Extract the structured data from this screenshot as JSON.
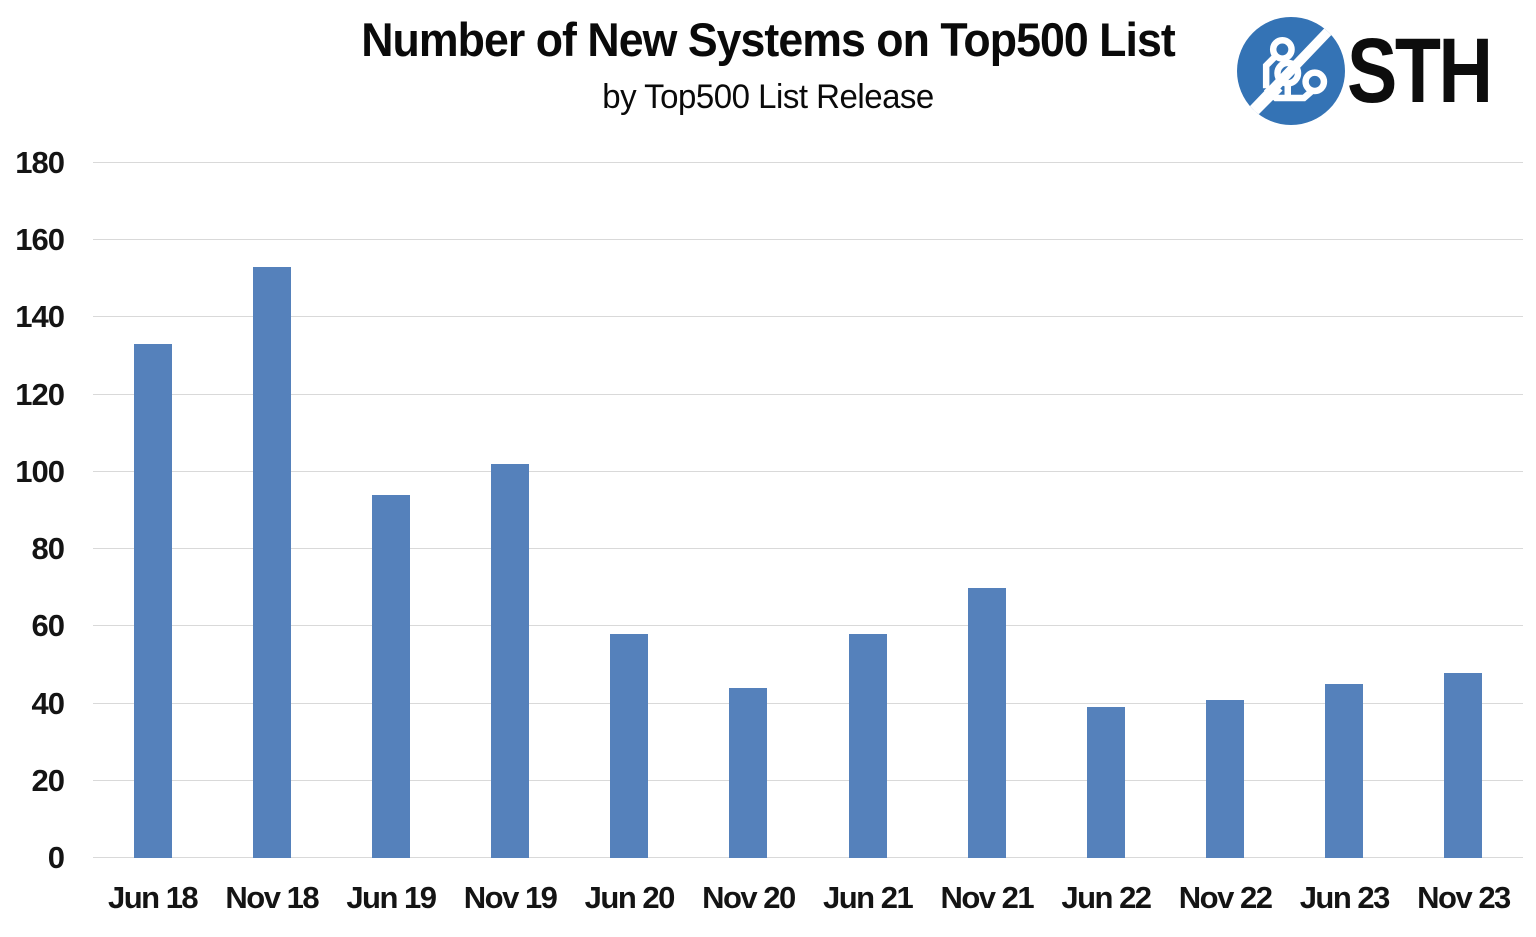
{
  "header": {
    "title": "Number of New Systems on Top500 List",
    "subtitle": "by Top500 List Release"
  },
  "logo": {
    "text": "STH",
    "circle_color": "#3473b5",
    "trace_color": "#ffffff",
    "text_color": "#0d0d0d"
  },
  "chart_data": {
    "type": "bar",
    "title": "Number of New Systems on Top500 List",
    "subtitle": "by Top500 List Release",
    "categories": [
      "Jun 18",
      "Nov 18",
      "Jun 19",
      "Nov 19",
      "Jun 20",
      "Nov 20",
      "Jun 21",
      "Nov 21",
      "Jun 22",
      "Nov 22",
      "Jun 23",
      "Nov 23"
    ],
    "values": [
      133,
      153,
      94,
      102,
      58,
      44,
      58,
      70,
      39,
      41,
      45,
      48
    ],
    "xlabel": "",
    "ylabel": "",
    "ylim": [
      0,
      180
    ],
    "yticks": [
      0,
      20,
      40,
      60,
      80,
      100,
      120,
      140,
      160,
      180
    ],
    "grid": true,
    "legend": "none",
    "bar_color": "#5581bb",
    "gridline_color": "#d9d9d9"
  }
}
